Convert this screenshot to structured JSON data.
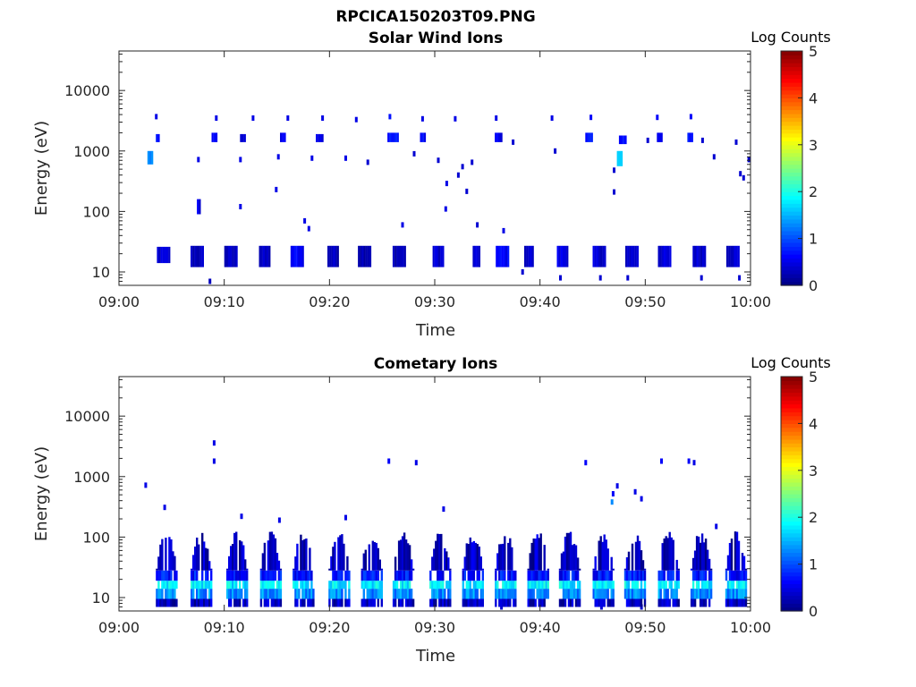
{
  "figure_title": "RPCICA150203T09.PNG",
  "chart_data": [
    {
      "type": "heatmap",
      "title": "Solar Wind Ions",
      "xlabel": "Time",
      "ylabel": "Energy (eV)",
      "x_ticks": [
        "09:00",
        "09:10",
        "09:20",
        "09:30",
        "09:40",
        "09:50",
        "10:00"
      ],
      "y_ticks": [
        "10",
        "100",
        "1000",
        "10000"
      ],
      "y_scale": "log",
      "ylim": [
        6,
        45000
      ],
      "xlim_minutes": [
        0,
        60
      ],
      "colorbar": {
        "label": "Log Counts",
        "ticks": [
          "0",
          "1",
          "2",
          "3",
          "4",
          "5"
        ],
        "range": [
          0,
          5
        ]
      },
      "patches": [
        {
          "t0": 2.7,
          "t1": 3.2,
          "e0": 600,
          "e1": 1000,
          "v": 1.3
        },
        {
          "t0": 3.5,
          "t1": 3.8,
          "e0": 1400,
          "e1": 1900,
          "v": 0.6
        },
        {
          "t0": 3.6,
          "t1": 4.7,
          "e0": 14,
          "e1": 26,
          "v": 0.4
        },
        {
          "t0": 6.8,
          "t1": 8.0,
          "e0": 12,
          "e1": 27,
          "v": 0.3
        },
        {
          "t0": 7.4,
          "t1": 7.7,
          "e0": 90,
          "e1": 160,
          "v": 0.5
        },
        {
          "t0": 8.8,
          "t1": 9.2,
          "e0": 1400,
          "e1": 2000,
          "v": 0.6
        },
        {
          "t0": 10.0,
          "t1": 11.2,
          "e0": 12,
          "e1": 27,
          "v": 0.3
        },
        {
          "t0": 11.5,
          "t1": 12.0,
          "e0": 1400,
          "e1": 1900,
          "v": 0.5
        },
        {
          "t0": 13.3,
          "t1": 14.3,
          "e0": 12,
          "e1": 27,
          "v": 0.3
        },
        {
          "t0": 15.3,
          "t1": 15.7,
          "e0": 1400,
          "e1": 2000,
          "v": 0.5
        },
        {
          "t0": 16.3,
          "t1": 17.5,
          "e0": 12,
          "e1": 27,
          "v": 0.6
        },
        {
          "t0": 18.7,
          "t1": 19.3,
          "e0": 1400,
          "e1": 1900,
          "v": 0.5
        },
        {
          "t0": 19.8,
          "t1": 20.8,
          "e0": 12,
          "e1": 27,
          "v": 0.3
        },
        {
          "t0": 22.7,
          "t1": 23.9,
          "e0": 12,
          "e1": 27,
          "v": 0.3
        },
        {
          "t0": 25.5,
          "t1": 26.5,
          "e0": 1400,
          "e1": 2000,
          "v": 0.7
        },
        {
          "t0": 26.0,
          "t1": 27.2,
          "e0": 12,
          "e1": 27,
          "v": 0.3
        },
        {
          "t0": 28.6,
          "t1": 29.0,
          "e0": 1400,
          "e1": 2000,
          "v": 0.6
        },
        {
          "t0": 29.8,
          "t1": 30.8,
          "e0": 12,
          "e1": 27,
          "v": 0.4
        },
        {
          "t0": 33.6,
          "t1": 34.3,
          "e0": 12,
          "e1": 27,
          "v": 0.4
        },
        {
          "t0": 35.7,
          "t1": 36.3,
          "e0": 1400,
          "e1": 2000,
          "v": 0.5
        },
        {
          "t0": 35.8,
          "t1": 37.0,
          "e0": 12,
          "e1": 27,
          "v": 0.6
        },
        {
          "t0": 38.5,
          "t1": 39.4,
          "e0": 12,
          "e1": 27,
          "v": 0.4
        },
        {
          "t0": 41.6,
          "t1": 42.6,
          "e0": 12,
          "e1": 27,
          "v": 0.5
        },
        {
          "t0": 44.3,
          "t1": 45.0,
          "e0": 1400,
          "e1": 2000,
          "v": 0.7
        },
        {
          "t0": 45.0,
          "t1": 46.2,
          "e0": 12,
          "e1": 27,
          "v": 0.4
        },
        {
          "t0": 47.3,
          "t1": 47.8,
          "e0": 560,
          "e1": 1000,
          "v": 1.6
        },
        {
          "t0": 47.5,
          "t1": 48.1,
          "e0": 1300,
          "e1": 1800,
          "v": 0.6
        },
        {
          "t0": 48.1,
          "t1": 49.2,
          "e0": 12,
          "e1": 27,
          "v": 0.4
        },
        {
          "t0": 51.1,
          "t1": 51.6,
          "e0": 1400,
          "e1": 2000,
          "v": 0.6
        },
        {
          "t0": 51.2,
          "t1": 52.3,
          "e0": 12,
          "e1": 27,
          "v": 0.4
        },
        {
          "t0": 54.0,
          "t1": 54.5,
          "e0": 1400,
          "e1": 2000,
          "v": 0.7
        },
        {
          "t0": 54.5,
          "t1": 55.6,
          "e0": 12,
          "e1": 27,
          "v": 0.4
        },
        {
          "t0": 57.7,
          "t1": 58.9,
          "e0": 12,
          "e1": 27,
          "v": 0.4
        }
      ],
      "dots": [
        {
          "t": 3.5,
          "e": 3700,
          "v": 0.5
        },
        {
          "t": 9.2,
          "e": 3500,
          "v": 0.5
        },
        {
          "t": 12.7,
          "e": 3500,
          "v": 0.5
        },
        {
          "t": 16.0,
          "e": 3500,
          "v": 0.5
        },
        {
          "t": 19.3,
          "e": 3500,
          "v": 0.5
        },
        {
          "t": 22.5,
          "e": 3300,
          "v": 0.5
        },
        {
          "t": 25.7,
          "e": 3700,
          "v": 0.7
        },
        {
          "t": 28.8,
          "e": 3400,
          "v": 0.5
        },
        {
          "t": 31.9,
          "e": 3400,
          "v": 0.5
        },
        {
          "t": 35.8,
          "e": 3500,
          "v": 0.5
        },
        {
          "t": 41.1,
          "e": 3500,
          "v": 0.5
        },
        {
          "t": 44.8,
          "e": 3600,
          "v": 0.6
        },
        {
          "t": 51.1,
          "e": 3600,
          "v": 0.6
        },
        {
          "t": 54.3,
          "e": 3700,
          "v": 0.6
        },
        {
          "t": 7.5,
          "e": 720,
          "v": 0.5
        },
        {
          "t": 11.5,
          "e": 720,
          "v": 0.5
        },
        {
          "t": 15.1,
          "e": 800,
          "v": 0.5
        },
        {
          "t": 18.3,
          "e": 760,
          "v": 0.5
        },
        {
          "t": 21.5,
          "e": 760,
          "v": 0.5
        },
        {
          "t": 23.6,
          "e": 650,
          "v": 0.4
        },
        {
          "t": 28.0,
          "e": 900,
          "v": 0.4
        },
        {
          "t": 30.3,
          "e": 700,
          "v": 0.4
        },
        {
          "t": 33.5,
          "e": 650,
          "v": 0.4
        },
        {
          "t": 37.4,
          "e": 1400,
          "v": 0.4
        },
        {
          "t": 41.4,
          "e": 1000,
          "v": 0.4
        },
        {
          "t": 47.0,
          "e": 480,
          "v": 0.4
        },
        {
          "t": 47.0,
          "e": 210,
          "v": 0.4
        },
        {
          "t": 50.2,
          "e": 1500,
          "v": 0.4
        },
        {
          "t": 55.4,
          "e": 1500,
          "v": 0.4
        },
        {
          "t": 56.5,
          "e": 800,
          "v": 0.4
        },
        {
          "t": 58.6,
          "e": 1400,
          "v": 0.4
        },
        {
          "t": 59.8,
          "e": 720,
          "v": 0.4
        },
        {
          "t": 59.0,
          "e": 420,
          "v": 0.4
        },
        {
          "t": 59.3,
          "e": 360,
          "v": 0.4
        },
        {
          "t": 11.5,
          "e": 120,
          "v": 0.5
        },
        {
          "t": 14.9,
          "e": 230,
          "v": 0.5
        },
        {
          "t": 17.6,
          "e": 70,
          "v": 0.5
        },
        {
          "t": 18.0,
          "e": 52,
          "v": 0.5
        },
        {
          "t": 26.9,
          "e": 60,
          "v": 0.5
        },
        {
          "t": 31.0,
          "e": 110,
          "v": 0.5
        },
        {
          "t": 31.1,
          "e": 290,
          "v": 0.5
        },
        {
          "t": 32.2,
          "e": 400,
          "v": 0.4
        },
        {
          "t": 32.6,
          "e": 550,
          "v": 0.4
        },
        {
          "t": 33.0,
          "e": 215,
          "v": 0.4
        },
        {
          "t": 34.0,
          "e": 60,
          "v": 0.4
        },
        {
          "t": 36.5,
          "e": 48,
          "v": 0.5
        },
        {
          "t": 8.6,
          "e": 7,
          "v": 0.3
        },
        {
          "t": 38.3,
          "e": 10,
          "v": 0.4
        },
        {
          "t": 41.9,
          "e": 8,
          "v": 0.4
        },
        {
          "t": 45.7,
          "e": 8,
          "v": 0.4
        },
        {
          "t": 48.3,
          "e": 8,
          "v": 0.4
        },
        {
          "t": 55.3,
          "e": 8,
          "v": 0.4
        },
        {
          "t": 58.9,
          "e": 8,
          "v": 0.4
        }
      ]
    },
    {
      "type": "heatmap",
      "title": "Cometary Ions",
      "xlabel": "Time",
      "ylabel": "Energy (eV)",
      "x_ticks": [
        "09:00",
        "09:10",
        "09:20",
        "09:30",
        "09:40",
        "09:50",
        "10:00"
      ],
      "y_ticks": [
        "10",
        "100",
        "1000",
        "10000"
      ],
      "y_scale": "log",
      "ylim": [
        6,
        45000
      ],
      "xlim_minutes": [
        0,
        60
      ],
      "colorbar": {
        "label": "Log Counts",
        "ticks": [
          "0",
          "1",
          "2",
          "3",
          "4",
          "5"
        ],
        "range": [
          0,
          5
        ]
      },
      "bursts_start_min": [
        3.5,
        6.8,
        10.2,
        13.4,
        16.5,
        19.9,
        23.0,
        26.0,
        29.5,
        32.6,
        35.7,
        38.8,
        41.8,
        45.0,
        48.0,
        51.2,
        54.3,
        57.6
      ],
      "dots": [
        {
          "t": 2.5,
          "e": 720,
          "v": 0.5
        },
        {
          "t": 4.3,
          "e": 310,
          "v": 0.5
        },
        {
          "t": 9.0,
          "e": 3600,
          "v": 0.5
        },
        {
          "t": 9.0,
          "e": 1800,
          "v": 0.5
        },
        {
          "t": 11.6,
          "e": 220,
          "v": 0.5
        },
        {
          "t": 15.2,
          "e": 190,
          "v": 0.5
        },
        {
          "t": 21.5,
          "e": 210,
          "v": 0.5
        },
        {
          "t": 25.6,
          "e": 1800,
          "v": 0.6
        },
        {
          "t": 28.2,
          "e": 1700,
          "v": 0.5
        },
        {
          "t": 30.8,
          "e": 290,
          "v": 0.5
        },
        {
          "t": 44.3,
          "e": 1700,
          "v": 0.6
        },
        {
          "t": 46.9,
          "e": 520,
          "v": 0.6
        },
        {
          "t": 46.8,
          "e": 380,
          "v": 1.3
        },
        {
          "t": 47.3,
          "e": 700,
          "v": 0.5
        },
        {
          "t": 49.0,
          "e": 560,
          "v": 0.5
        },
        {
          "t": 49.6,
          "e": 430,
          "v": 0.5
        },
        {
          "t": 51.5,
          "e": 1800,
          "v": 0.6
        },
        {
          "t": 54.1,
          "e": 1800,
          "v": 0.6
        },
        {
          "t": 54.6,
          "e": 1700,
          "v": 0.5
        },
        {
          "t": 56.7,
          "e": 150,
          "v": 0.5
        },
        {
          "t": 36.3,
          "e": 7,
          "v": 0.4
        },
        {
          "t": 45.8,
          "e": 7,
          "v": 0.4
        },
        {
          "t": 49.6,
          "e": 7,
          "v": 0.4
        }
      ]
    }
  ]
}
